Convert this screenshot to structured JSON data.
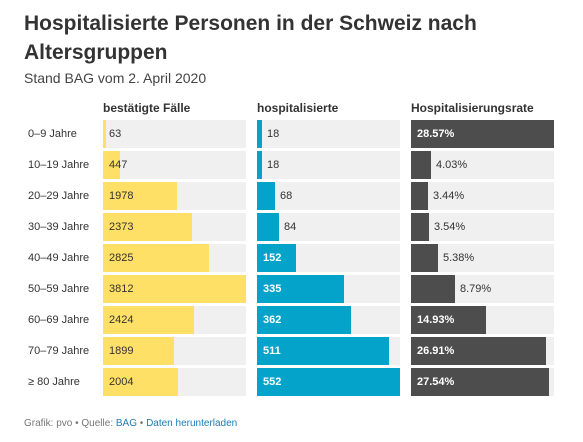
{
  "header": {
    "title": "Hospitalisierte Personen in der Schweiz nach Altersgruppen",
    "subtitle": "Stand BAG vom 2. April 2020"
  },
  "footer": {
    "prefix": "Grafik: pvo • Quelle: ",
    "source_link": "BAG",
    "separator": " • ",
    "download_link": "Daten herunterladen"
  },
  "colors": {
    "cases": "#ffe066",
    "hospitalized": "#04a3c9",
    "rate": "#4d4d4d",
    "track": "#f0f0f0"
  },
  "chart_data": {
    "type": "table",
    "categories": [
      "0–9 Jahre",
      "10–19 Jahre",
      "20–29 Jahre",
      "30–39 Jahre",
      "40–49 Jahre",
      "50–59 Jahre",
      "60–69 Jahre",
      "70–79 Jahre",
      "≥ 80 Jahre"
    ],
    "series": [
      {
        "name": "bestätigte Fälle",
        "values": [
          63,
          447,
          1978,
          2373,
          2825,
          3812,
          2424,
          1899,
          2004
        ],
        "labels": [
          "63",
          "447",
          "1978",
          "2373",
          "2825",
          "3812",
          "2424",
          "1899",
          "2004"
        ],
        "max": 3812
      },
      {
        "name": "hospitalisierte",
        "values": [
          18,
          18,
          68,
          84,
          152,
          335,
          362,
          511,
          552
        ],
        "labels": [
          "18",
          "18",
          "68",
          "84",
          "152",
          "335",
          "362",
          "511",
          "552"
        ],
        "max": 552
      },
      {
        "name": "Hospitalisierungsrate",
        "values": [
          28.57,
          4.03,
          3.44,
          3.54,
          5.38,
          8.79,
          14.93,
          26.91,
          27.54
        ],
        "labels": [
          "28.57%",
          "4.03%",
          "3.44%",
          "3.54%",
          "5.38%",
          "8.79%",
          "14.93%",
          "26.91%",
          "27.54%"
        ],
        "max": 28.57
      }
    ]
  }
}
